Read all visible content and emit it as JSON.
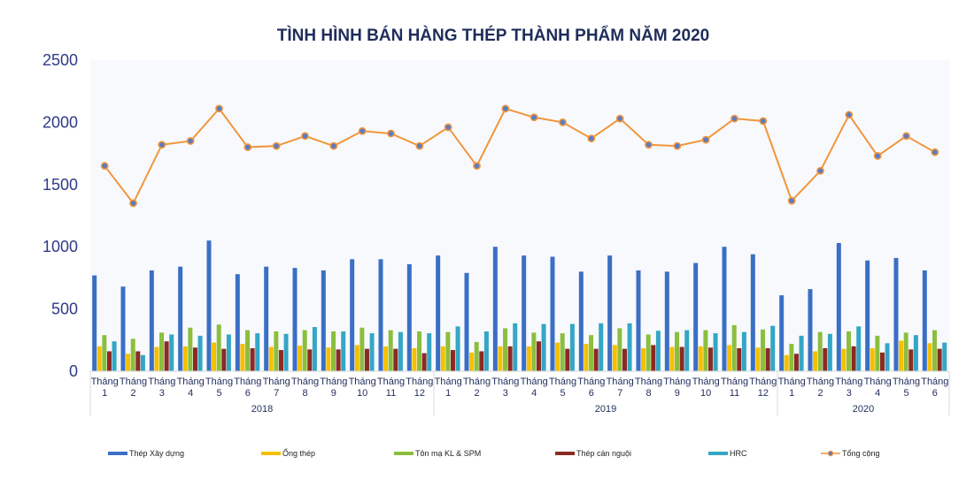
{
  "chart_data": {
    "type": "bar",
    "title": "TÌNH HÌNH BÁN HÀNG THÉP THÀNH PHẨM NĂM 2020",
    "ylim": [
      0,
      2500
    ],
    "yticks": [
      0,
      500,
      1000,
      1500,
      2000,
      2500
    ],
    "grid": false,
    "legend_position": "bottom",
    "categories": [
      {
        "line1": "Tháng",
        "line2": "1"
      },
      {
        "line1": "Tháng",
        "line2": "2"
      },
      {
        "line1": "Tháng",
        "line2": "3"
      },
      {
        "line1": "Tháng",
        "line2": "4"
      },
      {
        "line1": "Tháng",
        "line2": "5"
      },
      {
        "line1": "Tháng",
        "line2": "6"
      },
      {
        "line1": "Tháng",
        "line2": "7"
      },
      {
        "line1": "Tháng",
        "line2": "8"
      },
      {
        "line1": "Tháng",
        "line2": "9"
      },
      {
        "line1": "Tháng",
        "line2": "10"
      },
      {
        "line1": "Tháng",
        "line2": "11"
      },
      {
        "line1": "Tháng",
        "line2": "12"
      },
      {
        "line1": "Tháng",
        "line2": "1"
      },
      {
        "line1": "Tháng",
        "line2": "2"
      },
      {
        "line1": "Tháng",
        "line2": "3"
      },
      {
        "line1": "Tháng",
        "line2": "4"
      },
      {
        "line1": "Tháng",
        "line2": "5"
      },
      {
        "line1": "Tháng",
        "line2": "6"
      },
      {
        "line1": "Tháng",
        "line2": "7"
      },
      {
        "line1": "Tháng",
        "line2": "8"
      },
      {
        "line1": "Tháng",
        "line2": "9"
      },
      {
        "line1": "Tháng",
        "line2": "10"
      },
      {
        "line1": "Tháng",
        "line2": "11"
      },
      {
        "line1": "Tháng",
        "line2": "12"
      },
      {
        "line1": "Tháng",
        "line2": "1"
      },
      {
        "line1": "Tháng",
        "line2": "2"
      },
      {
        "line1": "Tháng",
        "line2": "3"
      },
      {
        "line1": "Tháng",
        "line2": "4"
      },
      {
        "line1": "Tháng",
        "line2": "5"
      },
      {
        "line1": "Tháng",
        "line2": "6"
      }
    ],
    "groups": [
      {
        "label": "2018",
        "count": 12
      },
      {
        "label": "2019",
        "count": 12
      },
      {
        "label": "2020",
        "count": 6
      }
    ],
    "series": [
      {
        "name": "Thép Xây dựng",
        "type": "bar",
        "color": "#3a6fc6",
        "values": [
          770,
          680,
          810,
          840,
          1050,
          780,
          840,
          830,
          810,
          900,
          900,
          860,
          930,
          790,
          1000,
          930,
          920,
          800,
          930,
          810,
          800,
          870,
          1000,
          940,
          610,
          660,
          1030,
          890,
          910,
          810
        ]
      },
      {
        "name": "Ống thép",
        "type": "bar",
        "color": "#f5c000",
        "values": [
          200,
          140,
          195,
          200,
          230,
          220,
          195,
          205,
          190,
          210,
          200,
          185,
          200,
          150,
          200,
          200,
          230,
          220,
          210,
          185,
          195,
          200,
          210,
          190,
          130,
          160,
          180,
          185,
          245,
          225
        ]
      },
      {
        "name": "Tôn mạ KL & SPM",
        "type": "bar",
        "color": "#8bbe3e",
        "values": [
          290,
          260,
          310,
          350,
          375,
          330,
          320,
          330,
          320,
          350,
          330,
          320,
          315,
          235,
          345,
          310,
          305,
          290,
          345,
          295,
          315,
          330,
          370,
          335,
          220,
          315,
          320,
          285,
          310,
          330
        ]
      },
      {
        "name": "Thép cán nguội",
        "type": "bar",
        "color": "#8b2a23",
        "values": [
          160,
          160,
          240,
          190,
          180,
          185,
          170,
          175,
          175,
          180,
          180,
          145,
          170,
          160,
          200,
          240,
          180,
          180,
          180,
          210,
          195,
          190,
          185,
          185,
          140,
          185,
          200,
          150,
          175,
          180
        ]
      },
      {
        "name": "HRC",
        "type": "bar",
        "color": "#34a6c6",
        "values": [
          240,
          130,
          295,
          285,
          295,
          305,
          300,
          355,
          320,
          305,
          315,
          305,
          360,
          320,
          385,
          380,
          380,
          385,
          385,
          325,
          330,
          305,
          315,
          365,
          285,
          300,
          360,
          225,
          290,
          230
        ]
      },
      {
        "name": "Tổng cộng",
        "type": "line",
        "color": "#f0963c",
        "values": [
          1650,
          1350,
          1820,
          1850,
          2110,
          1800,
          1810,
          1890,
          1810,
          1930,
          1910,
          1810,
          1960,
          1650,
          2110,
          2040,
          2000,
          1870,
          2030,
          1820,
          1810,
          1860,
          2030,
          2010,
          1370,
          1610,
          2060,
          1730,
          1890,
          1760
        ]
      }
    ]
  }
}
